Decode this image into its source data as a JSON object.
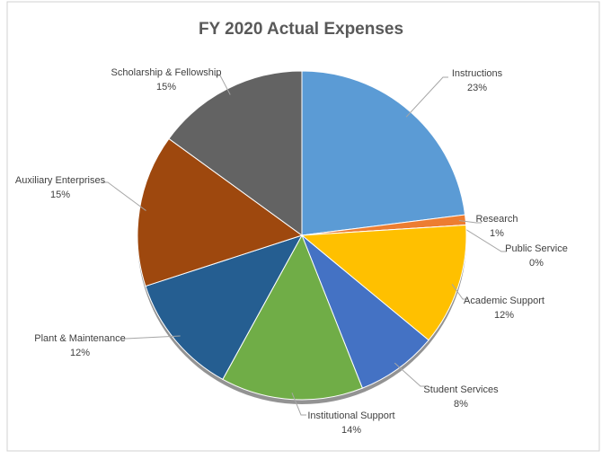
{
  "chart_data": {
    "type": "pie",
    "title": "FY 2020 Actual Expenses",
    "categories": [
      "Instructions",
      "Research",
      "Public Service",
      "Academic Support",
      "Student Services",
      "Institutional Support",
      "Plant & Maintenance",
      "Auxiliary Enterprises",
      "Scholarship & Fellowship"
    ],
    "values": [
      23,
      1,
      0,
      12,
      8,
      14,
      12,
      15,
      15
    ],
    "value_labels": [
      "23%",
      "1%",
      "0%",
      "12%",
      "8%",
      "14%",
      "12%",
      "15%",
      "15%"
    ],
    "colors": [
      "#5b9bd5",
      "#ed7d31",
      "#a5a5a5",
      "#ffc000",
      "#4472c4",
      "#70ad47",
      "#255e91",
      "#9e480e",
      "#636363"
    ]
  }
}
